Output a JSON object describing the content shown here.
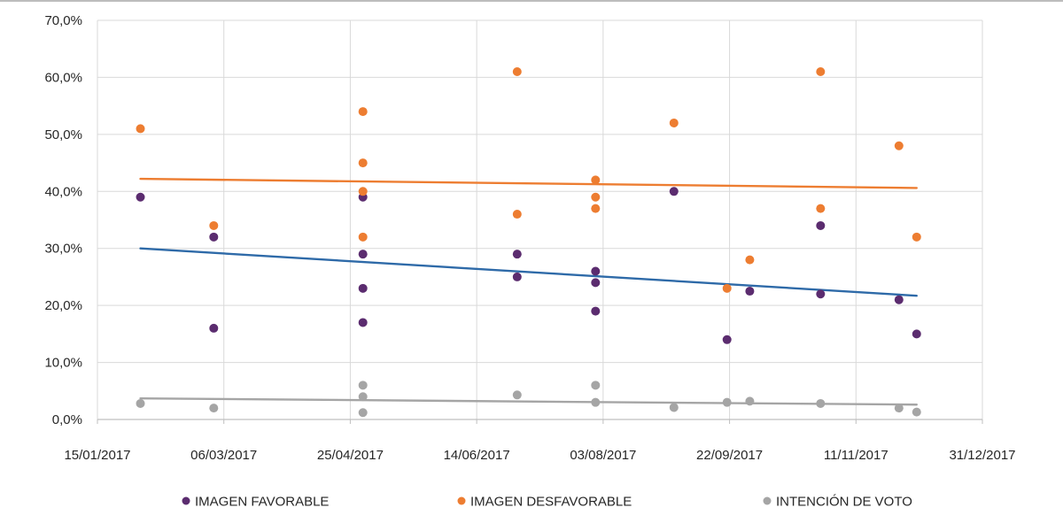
{
  "chart_data": {
    "type": "scatter",
    "title": "",
    "xlabel": "",
    "ylabel": "",
    "x_axis_type": "date",
    "xlim": [
      "2017-01-15",
      "2017-12-31"
    ],
    "ylim": [
      0,
      70
    ],
    "x_ticks": [
      "2017-01-15",
      "2017-03-06",
      "2017-04-25",
      "2017-06-14",
      "2017-08-03",
      "2017-09-22",
      "2017-11-11",
      "2017-12-31"
    ],
    "x_tick_labels": [
      "15/01/2017",
      "06/03/2017",
      "25/04/2017",
      "14/06/2017",
      "03/08/2017",
      "22/09/2017",
      "11/11/2017",
      "31/12/2017"
    ],
    "y_ticks": [
      0,
      10,
      20,
      30,
      40,
      50,
      60,
      70
    ],
    "y_tick_labels": [
      "0,0%",
      "10,0%",
      "20,0%",
      "30,0%",
      "40,0%",
      "50,0%",
      "60,0%",
      "70,0%"
    ],
    "grid": "both",
    "legend_position": "bottom",
    "series": [
      {
        "name": "IMAGEN FAVORABLE",
        "color": "#5b2c6f",
        "points": [
          {
            "x": "2017-02-01",
            "y": 39
          },
          {
            "x": "2017-03-02",
            "y": 32
          },
          {
            "x": "2017-03-02",
            "y": 16
          },
          {
            "x": "2017-04-30",
            "y": 39
          },
          {
            "x": "2017-04-30",
            "y": 29
          },
          {
            "x": "2017-04-30",
            "y": 23
          },
          {
            "x": "2017-04-30",
            "y": 17
          },
          {
            "x": "2017-06-30",
            "y": 29
          },
          {
            "x": "2017-06-30",
            "y": 25
          },
          {
            "x": "2017-07-31",
            "y": 26
          },
          {
            "x": "2017-07-31",
            "y": 24
          },
          {
            "x": "2017-07-31",
            "y": 19
          },
          {
            "x": "2017-08-31",
            "y": 40
          },
          {
            "x": "2017-09-21",
            "y": 14
          },
          {
            "x": "2017-09-30",
            "y": 22.5
          },
          {
            "x": "2017-10-28",
            "y": 34
          },
          {
            "x": "2017-10-28",
            "y": 22
          },
          {
            "x": "2017-11-28",
            "y": 21
          },
          {
            "x": "2017-12-05",
            "y": 15
          }
        ]
      },
      {
        "name": "IMAGEN DESFAVORABLE",
        "color": "#ed7d31",
        "points": [
          {
            "x": "2017-02-01",
            "y": 51
          },
          {
            "x": "2017-03-02",
            "y": 34
          },
          {
            "x": "2017-04-30",
            "y": 54
          },
          {
            "x": "2017-04-30",
            "y": 45
          },
          {
            "x": "2017-04-30",
            "y": 40
          },
          {
            "x": "2017-04-30",
            "y": 32
          },
          {
            "x": "2017-06-30",
            "y": 61
          },
          {
            "x": "2017-06-30",
            "y": 36
          },
          {
            "x": "2017-07-31",
            "y": 42
          },
          {
            "x": "2017-07-31",
            "y": 39
          },
          {
            "x": "2017-07-31",
            "y": 37
          },
          {
            "x": "2017-08-31",
            "y": 52
          },
          {
            "x": "2017-09-21",
            "y": 23
          },
          {
            "x": "2017-09-30",
            "y": 28
          },
          {
            "x": "2017-10-28",
            "y": 61
          },
          {
            "x": "2017-10-28",
            "y": 37
          },
          {
            "x": "2017-11-28",
            "y": 48
          },
          {
            "x": "2017-12-05",
            "y": 32
          }
        ]
      },
      {
        "name": "INTENCIÓN DE VOTO",
        "color": "#a5a5a5",
        "points": [
          {
            "x": "2017-02-01",
            "y": 2.8
          },
          {
            "x": "2017-03-02",
            "y": 2
          },
          {
            "x": "2017-04-30",
            "y": 6
          },
          {
            "x": "2017-04-30",
            "y": 4
          },
          {
            "x": "2017-04-30",
            "y": 1.2
          },
          {
            "x": "2017-06-30",
            "y": 4.3
          },
          {
            "x": "2017-07-31",
            "y": 6
          },
          {
            "x": "2017-07-31",
            "y": 3
          },
          {
            "x": "2017-08-31",
            "y": 2.1
          },
          {
            "x": "2017-09-21",
            "y": 3
          },
          {
            "x": "2017-09-30",
            "y": 3.2
          },
          {
            "x": "2017-10-28",
            "y": 2.8
          },
          {
            "x": "2017-11-28",
            "y": 2
          },
          {
            "x": "2017-12-05",
            "y": 1.3
          }
        ]
      }
    ],
    "trendlines": [
      {
        "series": "IMAGEN FAVORABLE",
        "color": "#2e6aa8",
        "x": [
          "2017-02-01",
          "2017-12-05"
        ],
        "y": [
          30,
          21.7
        ]
      },
      {
        "series": "IMAGEN DESFAVORABLE",
        "color": "#ed7d31",
        "x": [
          "2017-02-01",
          "2017-12-05"
        ],
        "y": [
          42.2,
          40.6
        ]
      },
      {
        "series": "INTENCIÓN DE VOTO",
        "color": "#a5a5a5",
        "x": [
          "2017-02-01",
          "2017-12-05"
        ],
        "y": [
          3.7,
          2.6
        ]
      }
    ],
    "legend": [
      {
        "label": "IMAGEN FAVORABLE",
        "color": "#5b2c6f"
      },
      {
        "label": "IMAGEN DESFAVORABLE",
        "color": "#ed7d31"
      },
      {
        "label": "INTENCIÓN DE VOTO",
        "color": "#a5a5a5"
      }
    ]
  }
}
